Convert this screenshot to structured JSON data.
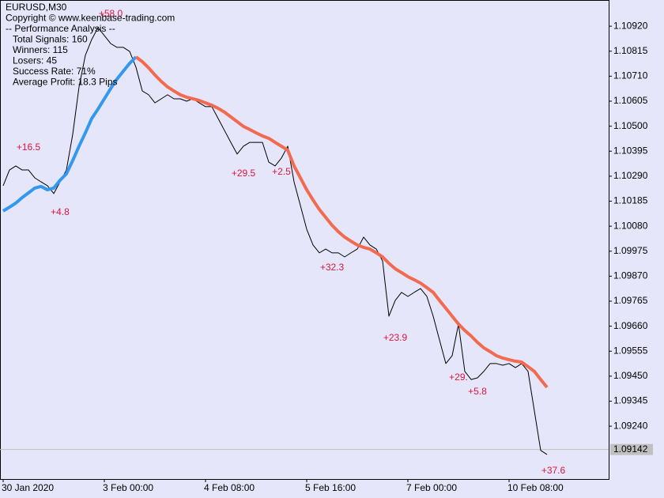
{
  "chart_data": {
    "type": "line",
    "info_lines": [
      "EURUSD,M30",
      "Copyright © www.keenbase-trading.com",
      "-- Performance Analysis --",
      "Total Signals: 160",
      "Winners: 115",
      "Losers: 45",
      "Success Rate: 71%",
      "Average Profit: 18.3 Pips"
    ],
    "categories": [
      "30 Jan 2020",
      null,
      null,
      null,
      null,
      null,
      null,
      null,
      null,
      null,
      null,
      null,
      null,
      null,
      null,
      null,
      "3 Feb 00:00",
      null,
      null,
      null,
      null,
      null,
      null,
      null,
      null,
      null,
      null,
      null,
      null,
      null,
      null,
      null,
      "4 Feb 08:00",
      null,
      null,
      null,
      null,
      null,
      null,
      null,
      null,
      null,
      null,
      null,
      null,
      null,
      null,
      null,
      "5 Feb 16:00",
      null,
      null,
      null,
      null,
      null,
      null,
      null,
      null,
      null,
      null,
      null,
      null,
      null,
      null,
      null,
      "7 Feb 00:00",
      null,
      null,
      null,
      null,
      null,
      null,
      null,
      null,
      null,
      null,
      null,
      null,
      null,
      null,
      null,
      "10 Feb 08:00",
      null,
      null,
      null,
      null,
      null,
      null
    ],
    "series": [
      {
        "color": "#000000",
        "width": 1,
        "values": [
          1.1025,
          1.10316,
          1.10333,
          1.10316,
          1.10316,
          1.10283,
          1.10266,
          1.1025,
          1.10217,
          1.10266,
          1.10316,
          1.10466,
          1.10665,
          1.10798,
          1.10864,
          1.10914,
          1.10881,
          1.10847,
          1.10831,
          1.10831,
          1.10814,
          1.10748,
          1.10648,
          1.10632,
          1.10598,
          1.10615,
          1.10632,
          1.10615,
          1.10615,
          1.10605,
          1.10615,
          1.10598,
          1.10582,
          1.10582,
          1.10532,
          1.10482,
          1.10432,
          1.10383,
          1.10416,
          1.10432,
          1.10432,
          1.10432,
          1.10349,
          1.10333,
          1.10366,
          1.10416,
          1.10266,
          1.10167,
          1.10067,
          1.10001,
          1.09968,
          1.09984,
          1.09968,
          1.09968,
          1.09951,
          1.09968,
          1.09984,
          1.10034,
          1.10001,
          1.09984,
          1.09934,
          1.09702,
          1.09768,
          1.09802,
          1.09785,
          1.09802,
          1.09818,
          1.09785,
          1.09702,
          1.09602,
          1.09503,
          1.09536,
          1.09669,
          1.0947,
          1.09436,
          1.09443,
          1.0947,
          1.09503,
          1.09503,
          1.09496,
          1.09503,
          1.09486,
          1.09503,
          1.0947,
          1.09304,
          1.09138,
          1.09121
        ]
      },
      {
        "color": "#3399ee",
        "width": 4,
        "values": [
          1.10144,
          1.1016,
          1.10177,
          1.102,
          1.1022,
          1.1024,
          1.10247,
          1.10233,
          1.1024,
          1.10273,
          1.103,
          1.10356,
          1.10416,
          1.10472,
          1.10532,
          1.10572,
          1.10615,
          1.10658,
          1.10698,
          1.10731,
          1.10764,
          1.10791,
          null,
          null,
          null,
          null,
          null,
          null,
          null,
          null,
          null,
          null,
          null,
          null,
          null,
          null,
          null,
          null,
          null,
          null,
          null,
          null,
          null,
          null,
          null,
          null,
          null,
          null,
          null,
          null,
          null,
          null,
          null,
          null,
          null,
          null,
          null,
          null,
          null,
          null,
          null,
          null,
          null,
          null,
          null,
          null,
          null,
          null,
          null,
          null,
          null,
          null,
          null,
          null,
          null,
          null,
          null,
          null,
          null,
          null,
          null,
          null,
          null,
          null,
          null,
          null,
          null
        ]
      },
      {
        "color": "#f26b50",
        "width": 4,
        "values": [
          null,
          null,
          null,
          null,
          null,
          null,
          null,
          null,
          null,
          null,
          null,
          null,
          null,
          null,
          null,
          null,
          null,
          null,
          null,
          null,
          null,
          1.10791,
          1.10771,
          1.10745,
          1.10715,
          1.10688,
          1.10665,
          1.10648,
          1.10632,
          1.10622,
          1.10615,
          1.10608,
          1.10598,
          1.10588,
          1.10575,
          1.10559,
          1.10539,
          1.10519,
          1.10499,
          1.10486,
          1.10472,
          1.10459,
          1.10449,
          1.10432,
          1.10416,
          1.10399,
          1.10333,
          1.10283,
          1.10233,
          1.1019,
          1.1015,
          1.10117,
          1.10084,
          1.10057,
          1.10034,
          1.10017,
          1.10001,
          1.09991,
          1.09984,
          1.09968,
          1.09951,
          1.09924,
          1.09901,
          1.09885,
          1.09868,
          1.09855,
          1.09841,
          1.09822,
          1.09802,
          1.09768,
          1.09735,
          1.09702,
          1.09669,
          1.09642,
          1.09619,
          1.09592,
          1.09569,
          1.09553,
          1.09536,
          1.09526,
          1.09519,
          1.09513,
          1.09509,
          1.0949,
          1.0947,
          1.09436,
          1.09403
        ]
      }
    ],
    "annotations": [
      {
        "text": "+16.5",
        "x": 4,
        "y": 1.10409
      },
      {
        "text": "+4.8",
        "x": 9,
        "y": 1.10137
      },
      {
        "text": "+58.0",
        "x": 17,
        "y": 1.1097
      },
      {
        "text": "+29.5",
        "x": 38,
        "y": 1.103
      },
      {
        "text": "+2.5",
        "x": 44,
        "y": 1.10306
      },
      {
        "text": "+32.3",
        "x": 52,
        "y": 1.09905
      },
      {
        "text": "+23.9",
        "x": 62,
        "y": 1.09609
      },
      {
        "text": "+29.",
        "x": 72,
        "y": 1.09443
      },
      {
        "text": "+5.8",
        "x": 75,
        "y": 1.09383
      },
      {
        "text": "+37.6",
        "x": 87,
        "y": 1.09051
      }
    ],
    "current_price": {
      "value": 1.09142,
      "label": "1.09142"
    },
    "ylim": [
      1.09018,
      1.1103
    ],
    "yticks": [
      {
        "value": 1.1092,
        "label": "1.10920"
      },
      {
        "value": 1.10815,
        "label": "1.10815"
      },
      {
        "value": 1.1071,
        "label": "1.10710"
      },
      {
        "value": 1.10605,
        "label": "1.10605"
      },
      {
        "value": 1.105,
        "label": "1.10500"
      },
      {
        "value": 1.10395,
        "label": "1.10395"
      },
      {
        "value": 1.1029,
        "label": "1.10290"
      },
      {
        "value": 1.10185,
        "label": "1.10185"
      },
      {
        "value": 1.1008,
        "label": "1.10080"
      },
      {
        "value": 1.09975,
        "label": "1.09975"
      },
      {
        "value": 1.0987,
        "label": "1.09870"
      },
      {
        "value": 1.09765,
        "label": "1.09765"
      },
      {
        "value": 1.0966,
        "label": "1.09660"
      },
      {
        "value": 1.09555,
        "label": "1.09555"
      },
      {
        "value": 1.0945,
        "label": "1.09450"
      },
      {
        "value": 1.09345,
        "label": "1.09345"
      },
      {
        "value": 1.0924,
        "label": "1.09240"
      }
    ],
    "grid": false
  }
}
